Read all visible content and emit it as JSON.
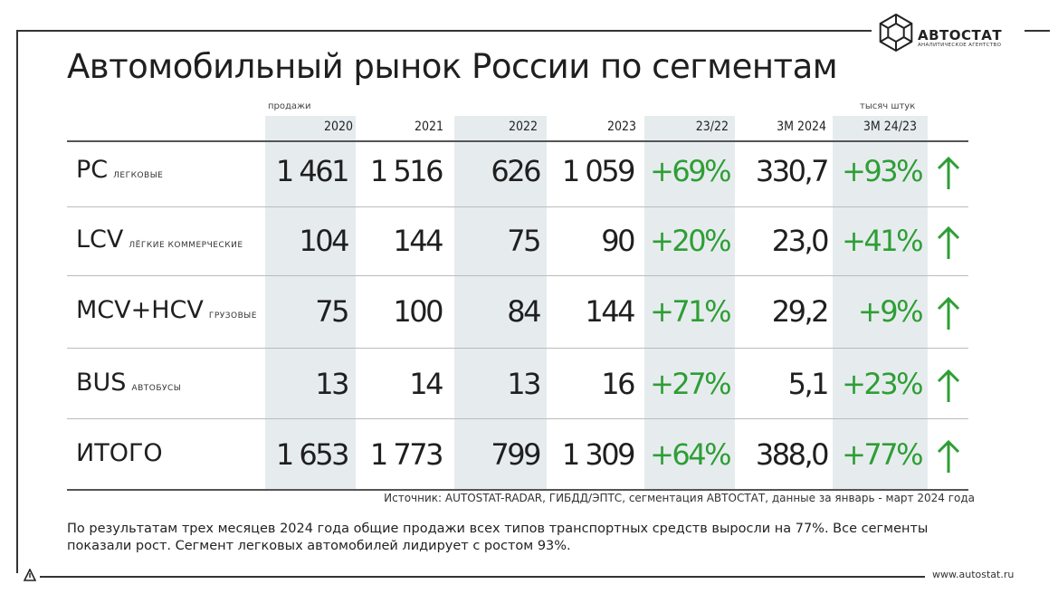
{
  "brand": {
    "name": "АВТОСТАТ",
    "tagline": "АНАЛИТИЧЕСКОЕ АГЕНТСТВО"
  },
  "title": "Автомобильный рынок России по сегментам",
  "labels": {
    "sales": "продажи",
    "units": "тысяч штук"
  },
  "columns": [
    "2020",
    "2021",
    "2022",
    "2023",
    "23/22",
    "3M 2024",
    "3M 24/23"
  ],
  "rows": [
    {
      "code": "PC",
      "desc": "легковые",
      "values": [
        "1 461",
        "1 516",
        "626",
        "1 059",
        "+69%",
        "330,7",
        "+93%"
      ],
      "trend": "up"
    },
    {
      "code": "LCV",
      "desc": "лёгкие коммерческие",
      "values": [
        "104",
        "144",
        "75",
        "90",
        "+20%",
        "23,0",
        "+41%"
      ],
      "trend": "up"
    },
    {
      "code": "MCV+HCV",
      "desc": "грузовые",
      "values": [
        "75",
        "100",
        "84",
        "144",
        "+71%",
        "29,2",
        "+9%"
      ],
      "trend": "up"
    },
    {
      "code": "BUS",
      "desc": "автобусы",
      "values": [
        "13",
        "14",
        "13",
        "16",
        "+27%",
        "5,1",
        "+23%"
      ],
      "trend": "up"
    },
    {
      "code": "ИТОГО",
      "desc": "",
      "values": [
        "1 653",
        "1 773",
        "799",
        "1 309",
        "+64%",
        "388,0",
        "+77%"
      ],
      "trend": "up"
    }
  ],
  "source": "Источник: AUTOSTAT-RADAR, ГИБДД/ЭПТС, сегментация АВТОСТАТ, данные за январь - март 2024 года",
  "summary": "По результатам трех месяцев 2024 года общие продажи всех типов транспортных средств выросли на 77%. Все сегменты показали рост. Сегмент легковых автомобилей лидирует с ростом 93%.",
  "website": "www.autostat.ru",
  "colors": {
    "accent_green": "#2e9e35",
    "text": "#1f1f1f",
    "column_shade": "#c8d4da"
  }
}
